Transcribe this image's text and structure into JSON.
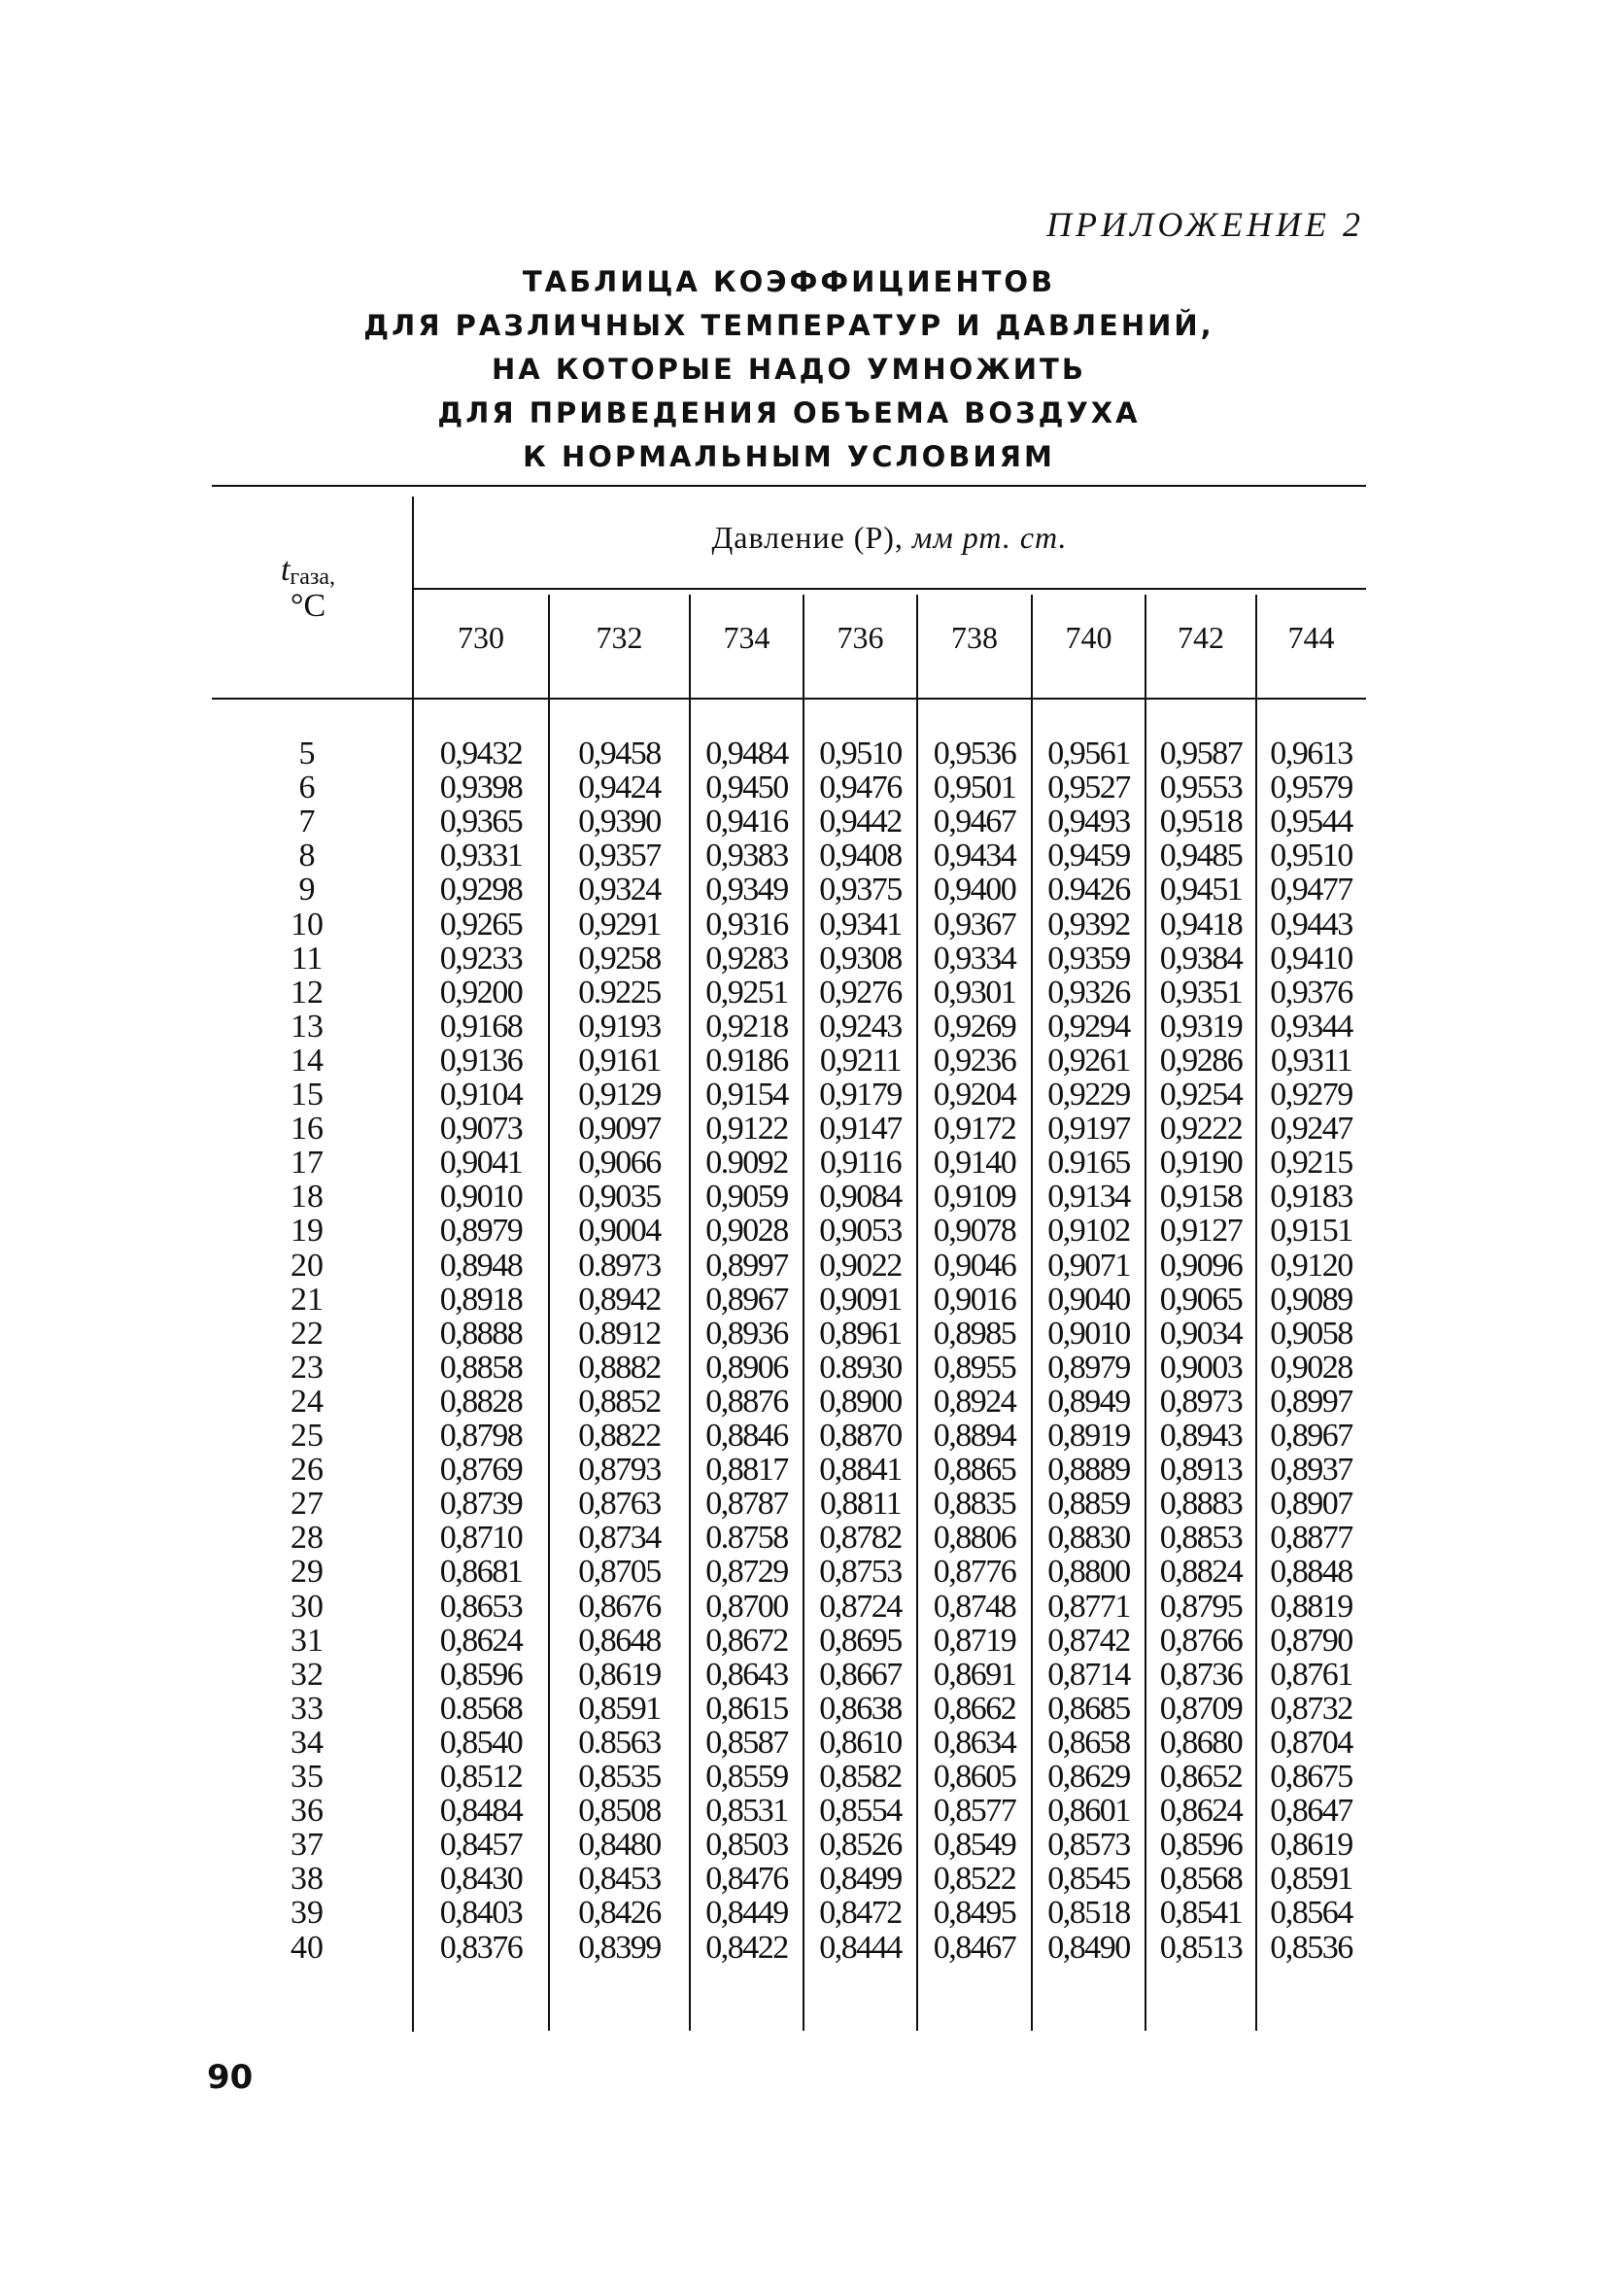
{
  "appendix_label": "ПРИЛОЖЕНИЕ 2",
  "title_lines": [
    "ТАБЛИЦА КОЭФФИЦИЕНТОВ",
    "ДЛЯ РАЗЛИЧНЫХ ТЕМПЕРАТУР И ДАВЛЕНИЙ,",
    "НА КОТОРЫЕ НАДО УМНОЖИТЬ",
    "ДЛЯ ПРИВЕДЕНИЯ ОБЪЕМА ВОЗДУХА",
    "К НОРМАЛЬНЫМ УСЛОВИЯМ"
  ],
  "table": {
    "row_header": {
      "symbol": "t",
      "subscript": "газа,",
      "unit": "°C"
    },
    "group_header": {
      "text": "Давление (Р), ",
      "unit": "мм рт. ст."
    },
    "columns": [
      "730",
      "732",
      "734",
      "736",
      "738",
      "740",
      "742",
      "744"
    ],
    "rows": [
      {
        "t": "5",
        "v": [
          "0,9432",
          "0,9458",
          "0,9484",
          "0,9510",
          "0,9536",
          "0,9561",
          "0,9587",
          "0,9613"
        ]
      },
      {
        "t": "6",
        "v": [
          "0,9398",
          "0,9424",
          "0,9450",
          "0,9476",
          "0,9501",
          "0,9527",
          "0,9553",
          "0,9579"
        ]
      },
      {
        "t": "7",
        "v": [
          "0,9365",
          "0,9390",
          "0,9416",
          "0,9442",
          "0,9467",
          "0,9493",
          "0,9518",
          "0,9544"
        ]
      },
      {
        "t": "8",
        "v": [
          "0,9331",
          "0,9357",
          "0,9383",
          "0,9408",
          "0,9434",
          "0,9459",
          "0,9485",
          "0,9510"
        ]
      },
      {
        "t": "9",
        "v": [
          "0,9298",
          "0,9324",
          "0,9349",
          "0,9375",
          "0,9400",
          "0.9426",
          "0,9451",
          "0,9477"
        ]
      },
      {
        "t": "10",
        "v": [
          "0,9265",
          "0,9291",
          "0,9316",
          "0,9341",
          "0,9367",
          "0,9392",
          "0,9418",
          "0,9443"
        ]
      },
      {
        "t": "11",
        "v": [
          "0,9233",
          "0,9258",
          "0,9283",
          "0,9308",
          "0,9334",
          "0,9359",
          "0,9384",
          "0,9410"
        ]
      },
      {
        "t": "12",
        "v": [
          "0,9200",
          "0.9225",
          "0,9251",
          "0,9276",
          "0,9301",
          "0,9326",
          "0,9351",
          "0,9376"
        ]
      },
      {
        "t": "13",
        "v": [
          "0,9168",
          "0,9193",
          "0,9218",
          "0,9243",
          "0,9269",
          "0,9294",
          "0,9319",
          "0,9344"
        ]
      },
      {
        "t": "14",
        "v": [
          "0,9136",
          "0,9161",
          "0.9186",
          "0,9211",
          "0,9236",
          "0,9261",
          "0,9286",
          "0,9311"
        ]
      },
      {
        "t": "15",
        "v": [
          "0,9104",
          "0,9129",
          "0,9154",
          "0,9179",
          "0,9204",
          "0,9229",
          "0,9254",
          "0,9279"
        ]
      },
      {
        "t": "16",
        "v": [
          "0,9073",
          "0,9097",
          "0,9122",
          "0,9147",
          "0,9172",
          "0,9197",
          "0,9222",
          "0,9247"
        ]
      },
      {
        "t": "17",
        "v": [
          "0,9041",
          "0,9066",
          "0.9092",
          "0,9116",
          "0,9140",
          "0.9165",
          "0,9190",
          "0,9215"
        ]
      },
      {
        "t": "18",
        "v": [
          "0,9010",
          "0,9035",
          "0,9059",
          "0,9084",
          "0,9109",
          "0,9134",
          "0,9158",
          "0,9183"
        ]
      },
      {
        "t": "19",
        "v": [
          "0,8979",
          "0,9004",
          "0,9028",
          "0,9053",
          "0,9078",
          "0,9102",
          "0,9127",
          "0,9151"
        ]
      },
      {
        "t": "20",
        "v": [
          "0,8948",
          "0.8973",
          "0,8997",
          "0,9022",
          "0,9046",
          "0,9071",
          "0,9096",
          "0,9120"
        ]
      },
      {
        "t": "21",
        "v": [
          "0,8918",
          "0,8942",
          "0,8967",
          "0,9091",
          "0,9016",
          "0,9040",
          "0,9065",
          "0,9089"
        ]
      },
      {
        "t": "22",
        "v": [
          "0,8888",
          "0.8912",
          "0,8936",
          "0,8961",
          "0,8985",
          "0,9010",
          "0,9034",
          "0,9058"
        ]
      },
      {
        "t": "23",
        "v": [
          "0,8858",
          "0,8882",
          "0,8906",
          "0.8930",
          "0,8955",
          "0,8979",
          "0,9003",
          "0,9028"
        ]
      },
      {
        "t": "24",
        "v": [
          "0,8828",
          "0,8852",
          "0,8876",
          "0,8900",
          "0,8924",
          "0,8949",
          "0,8973",
          "0,8997"
        ]
      },
      {
        "t": "25",
        "v": [
          "0,8798",
          "0,8822",
          "0,8846",
          "0,8870",
          "0,8894",
          "0,8919",
          "0,8943",
          "0,8967"
        ]
      },
      {
        "t": "26",
        "v": [
          "0,8769",
          "0,8793",
          "0,8817",
          "0,8841",
          "0,8865",
          "0,8889",
          "0,8913",
          "0,8937"
        ]
      },
      {
        "t": "27",
        "v": [
          "0,8739",
          "0,8763",
          "0,8787",
          "0,8811",
          "0,8835",
          "0,8859",
          "0,8883",
          "0,8907"
        ]
      },
      {
        "t": "28",
        "v": [
          "0,8710",
          "0,8734",
          "0.8758",
          "0,8782",
          "0,8806",
          "0,8830",
          "0,8853",
          "0,8877"
        ]
      },
      {
        "t": "29",
        "v": [
          "0,8681",
          "0,8705",
          "0,8729",
          "0,8753",
          "0,8776",
          "0,8800",
          "0,8824",
          "0,8848"
        ]
      },
      {
        "t": "30",
        "v": [
          "0,8653",
          "0,8676",
          "0,8700",
          "0,8724",
          "0,8748",
          "0,8771",
          "0,8795",
          "0,8819"
        ]
      },
      {
        "t": "31",
        "v": [
          "0,8624",
          "0,8648",
          "0,8672",
          "0,8695",
          "0,8719",
          "0,8742",
          "0,8766",
          "0,8790"
        ]
      },
      {
        "t": "32",
        "v": [
          "0,8596",
          "0,8619",
          "0,8643",
          "0,8667",
          "0,8691",
          "0,8714",
          "0,8736",
          "0,8761"
        ]
      },
      {
        "t": "33",
        "v": [
          "0.8568",
          "0,8591",
          "0,8615",
          "0,8638",
          "0,8662",
          "0,8685",
          "0,8709",
          "0,8732"
        ]
      },
      {
        "t": "34",
        "v": [
          "0,8540",
          "0.8563",
          "0,8587",
          "0,8610",
          "0,8634",
          "0,8658",
          "0,8680",
          "0,8704"
        ]
      },
      {
        "t": "35",
        "v": [
          "0,8512",
          "0,8535",
          "0,8559",
          "0,8582",
          "0,8605",
          "0,8629",
          "0,8652",
          "0,8675"
        ]
      },
      {
        "t": "36",
        "v": [
          "0,8484",
          "0,8508",
          "0,8531",
          "0,8554",
          "0,8577",
          "0,8601",
          "0,8624",
          "0,8647"
        ]
      },
      {
        "t": "37",
        "v": [
          "0,8457",
          "0,8480",
          "0,8503",
          "0,8526",
          "0,8549",
          "0,8573",
          "0,8596",
          "0,8619"
        ]
      },
      {
        "t": "38",
        "v": [
          "0,8430",
          "0,8453",
          "0,8476",
          "0,8499",
          "0,8522",
          "0,8545",
          "0,8568",
          "0,8591"
        ]
      },
      {
        "t": "39",
        "v": [
          "0,8403",
          "0,8426",
          "0,8449",
          "0,8472",
          "0,8495",
          "0,8518",
          "0,8541",
          "0,8564"
        ]
      },
      {
        "t": "40",
        "v": [
          "0,8376",
          "0,8399",
          "0,8422",
          "0,8444",
          "0,8467",
          "0,8490",
          "0,8513",
          "0,8536"
        ]
      }
    ]
  },
  "page_number": "90"
}
